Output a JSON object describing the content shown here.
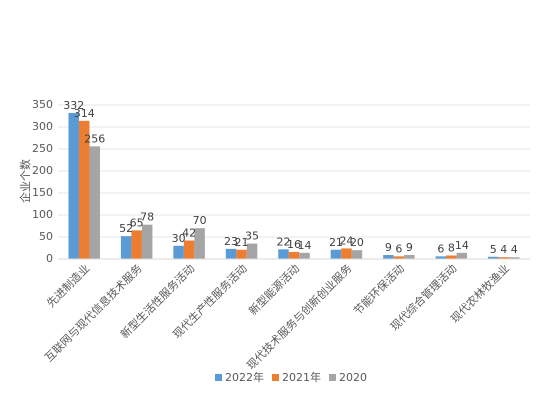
{
  "chart_data": {
    "type": "bar",
    "ylabel": "企业个数",
    "ylim": [
      0,
      350
    ],
    "yticks": [
      0,
      50,
      100,
      150,
      200,
      250,
      300,
      350
    ],
    "grid": true,
    "legend_position": "bottom",
    "categories": [
      "先进制造业",
      "互联网与现代信息技术服务",
      "新型生活性服务活动",
      "现代生产性服务活动",
      "新型能源活动",
      "现代技术服务与创新创业服务",
      "节能环保活动",
      "现代综合管理活动",
      "现代农林牧渔业"
    ],
    "series": [
      {
        "name": "2022年",
        "color": "#5B9BD5",
        "values": [
          332,
          52,
          30,
          23,
          22,
          21,
          9,
          6,
          5
        ]
      },
      {
        "name": "2021年",
        "color": "#ED7D31",
        "values": [
          314,
          65,
          42,
          21,
          16,
          24,
          6,
          8,
          4
        ]
      },
      {
        "name": "2020",
        "color": "#A5A5A5",
        "values": [
          256,
          78,
          70,
          35,
          14,
          20,
          9,
          14,
          4
        ]
      }
    ]
  }
}
